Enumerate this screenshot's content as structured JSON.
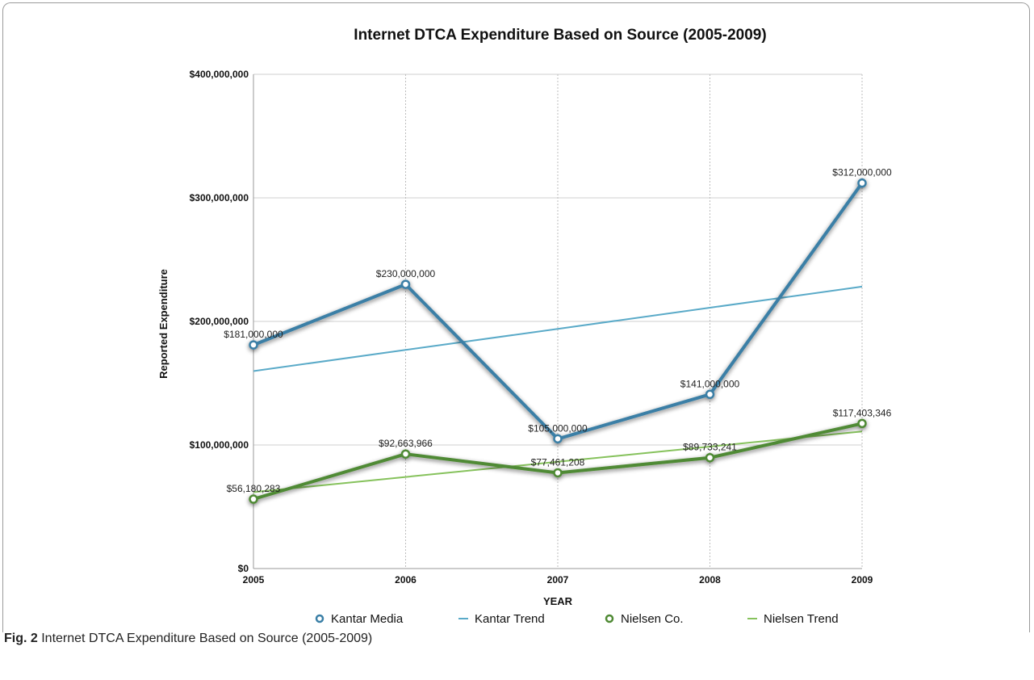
{
  "caption": {
    "label": "Fig. 2",
    "text": "Internet DTCA Expenditure Based on Source (2005-2009)"
  },
  "chart_data": {
    "type": "line",
    "title": "Internet DTCA Expenditure Based on Source (2005-2009)",
    "xlabel": "YEAR",
    "ylabel": "Reported Expenditure",
    "x": [
      "2005",
      "2006",
      "2007",
      "2008",
      "2009"
    ],
    "ylim": [
      0,
      400000000
    ],
    "yticks": [
      0,
      100000000,
      200000000,
      300000000,
      400000000
    ],
    "ytick_labels": [
      "$0",
      "$100,000,000",
      "$200,000,000",
      "$300,000,000",
      "$400,000,000"
    ],
    "grid": true,
    "legend": "bottom",
    "series": [
      {
        "name": "Kantar Media",
        "kind": "data",
        "color": "#3a7fa6",
        "values": [
          181000000,
          230000000,
          105000000,
          141000000,
          312000000
        ],
        "labels": [
          "$181,000,000",
          "$230,000,000",
          "$105,000,000",
          "$141,000,000",
          "$312,000,000"
        ]
      },
      {
        "name": "Kantar Trend",
        "kind": "trend",
        "color": "#5aaac8",
        "values": [
          159800000,
          176900000,
          194000000,
          211100000,
          228200000
        ]
      },
      {
        "name": "Nielsen Co.",
        "kind": "data",
        "color": "#4f8a34",
        "values": [
          56180283,
          92663966,
          77461208,
          89733241,
          117403346
        ],
        "labels": [
          "$56,180,283",
          "$92,663,966",
          "$77,461,208",
          "$89,733,241",
          "$117,403,346"
        ]
      },
      {
        "name": "Nielsen Trend",
        "kind": "trend",
        "color": "#86c25c",
        "values": [
          61800000,
          74100000,
          86400000,
          98700000,
          111000000
        ]
      }
    ]
  }
}
